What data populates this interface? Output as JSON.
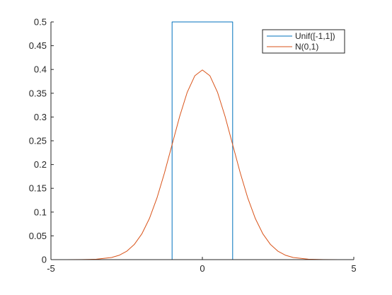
{
  "chart_data": {
    "type": "line",
    "xlim": [
      -5,
      5
    ],
    "ylim": [
      0,
      0.5
    ],
    "x_ticks": [
      -5,
      0,
      5
    ],
    "x_tick_labels": [
      "-5",
      "0",
      "5"
    ],
    "y_ticks": [
      0,
      0.05,
      0.1,
      0.15,
      0.2,
      0.25,
      0.3,
      0.35,
      0.4,
      0.45,
      0.5
    ],
    "y_tick_labels": [
      "0",
      "0.05",
      "0.1",
      "0.15",
      "0.2",
      "0.25",
      "0.3",
      "0.35",
      "0.4",
      "0.45",
      "0.5"
    ],
    "grid": false,
    "legend_position": "top-right",
    "series": [
      {
        "name": "Unif([-1,1])",
        "color": "#0072bd",
        "x": [
          -5,
          -1,
          -1,
          1,
          1,
          5
        ],
        "y": [
          0,
          0,
          0.5,
          0.5,
          0,
          0
        ]
      },
      {
        "name": "N(0,1)",
        "color": "#d95319",
        "x": [
          -5,
          -4.5,
          -4,
          -3.5,
          -3,
          -2.75,
          -2.5,
          -2.25,
          -2,
          -1.75,
          -1.5,
          -1.25,
          -1,
          -0.75,
          -0.5,
          -0.25,
          0,
          0.25,
          0.5,
          0.75,
          1,
          1.25,
          1.5,
          1.75,
          2,
          2.25,
          2.5,
          2.75,
          3,
          3.5,
          4,
          4.5,
          5
        ],
        "y": [
          1.5e-06,
          1.6e-05,
          0.000134,
          0.00087,
          0.00443,
          0.00909,
          0.01753,
          0.03174,
          0.05399,
          0.08628,
          0.12952,
          0.18265,
          0.24197,
          0.30114,
          0.35207,
          0.38667,
          0.39894,
          0.38667,
          0.35207,
          0.30114,
          0.24197,
          0.18265,
          0.12952,
          0.08628,
          0.05399,
          0.03174,
          0.01753,
          0.00909,
          0.00443,
          0.00087,
          0.000134,
          1.6e-05,
          1.5e-06
        ]
      }
    ]
  }
}
